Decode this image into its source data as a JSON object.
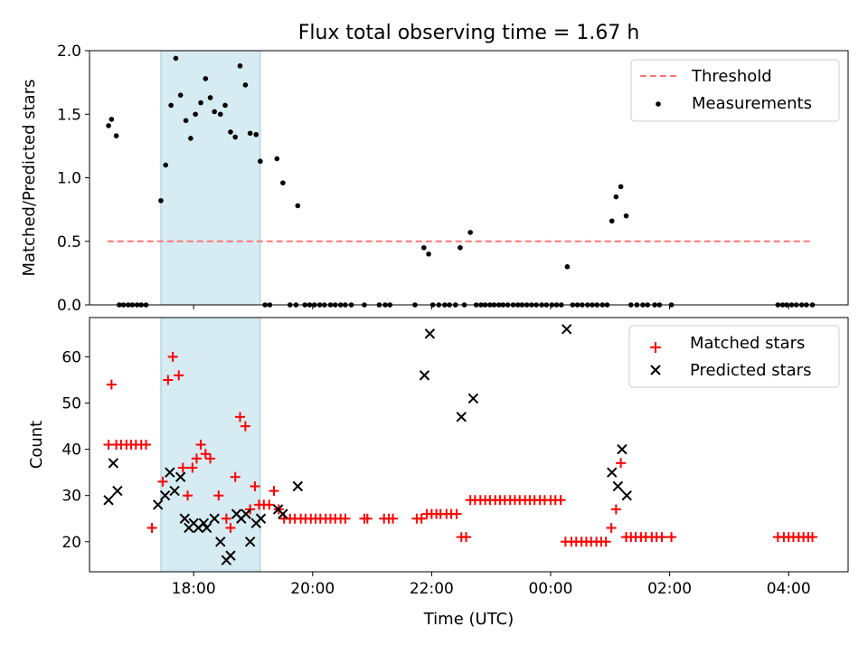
{
  "chart_data": [
    {
      "type": "scatter",
      "title": "Flux total observing time = 1.67 h",
      "xlabel": "",
      "ylabel": "Matched/Predicted stars",
      "ylim": [
        0,
        2.0
      ],
      "yticks": [
        "0.0",
        "0.5",
        "1.0",
        "1.5",
        "2.0"
      ],
      "ytick_values": [
        0,
        0.5,
        1.0,
        1.5,
        2.0
      ],
      "xlim_hours": [
        16.25,
        29.0
      ],
      "xtick_hours": [
        18,
        20,
        22,
        24,
        26,
        28
      ],
      "xtick_labels": [
        "18:00",
        "20:00",
        "22:00",
        "00:00",
        "02:00",
        "04:00"
      ],
      "show_xtick_labels": false,
      "highlight_span_hours": [
        17.45,
        19.12
      ],
      "highlight_color": "#add8e6",
      "threshold": {
        "name": "Threshold",
        "value": 0.5,
        "x_range_hours": [
          16.55,
          28.4
        ],
        "color": "#ff7777"
      },
      "legend": {
        "position": "upper right",
        "entries": [
          "Threshold",
          "Measurements"
        ]
      },
      "series": [
        {
          "name": "Measurements",
          "marker": "dot",
          "color": "#000000",
          "points": [
            [
              16.57,
              1.41
            ],
            [
              16.62,
              1.46
            ],
            [
              16.7,
              1.33
            ],
            [
              16.75,
              0
            ],
            [
              16.82,
              0
            ],
            [
              16.9,
              0
            ],
            [
              16.97,
              0
            ],
            [
              17.05,
              0
            ],
            [
              17.12,
              0
            ],
            [
              17.2,
              0
            ],
            [
              17.45,
              0.82
            ],
            [
              17.53,
              1.1
            ],
            [
              17.62,
              1.57
            ],
            [
              17.7,
              1.94
            ],
            [
              17.78,
              1.65
            ],
            [
              17.87,
              1.45
            ],
            [
              17.95,
              1.31
            ],
            [
              18.03,
              1.5
            ],
            [
              18.12,
              1.59
            ],
            [
              18.2,
              1.78
            ],
            [
              18.28,
              1.63
            ],
            [
              18.35,
              1.52
            ],
            [
              18.45,
              1.5
            ],
            [
              18.53,
              1.57
            ],
            [
              18.62,
              1.36
            ],
            [
              18.7,
              1.32
            ],
            [
              18.78,
              1.88
            ],
            [
              18.87,
              1.73
            ],
            [
              18.95,
              1.35
            ],
            [
              19.05,
              1.34
            ],
            [
              19.12,
              1.13
            ],
            [
              19.2,
              0
            ],
            [
              19.28,
              0
            ],
            [
              19.4,
              1.15
            ],
            [
              19.5,
              0.96
            ],
            [
              19.62,
              0
            ],
            [
              19.72,
              0
            ],
            [
              19.75,
              0.78
            ],
            [
              19.87,
              0
            ],
            [
              19.95,
              0
            ],
            [
              20.03,
              0
            ],
            [
              20.12,
              0
            ],
            [
              20.2,
              0
            ],
            [
              20.3,
              0
            ],
            [
              20.38,
              0
            ],
            [
              20.47,
              0
            ],
            [
              20.55,
              0
            ],
            [
              20.65,
              0
            ],
            [
              20.87,
              0
            ],
            [
              21.12,
              0
            ],
            [
              21.22,
              0
            ],
            [
              21.3,
              0
            ],
            [
              21.72,
              0
            ],
            [
              21.87,
              0.45
            ],
            [
              21.95,
              0.4
            ],
            [
              22.02,
              0
            ],
            [
              22.12,
              0
            ],
            [
              22.22,
              0
            ],
            [
              22.3,
              0
            ],
            [
              22.4,
              0
            ],
            [
              22.48,
              0.45
            ],
            [
              22.55,
              0
            ],
            [
              22.65,
              0.57
            ],
            [
              22.75,
              0
            ],
            [
              22.83,
              0
            ],
            [
              22.9,
              0
            ],
            [
              22.98,
              0
            ],
            [
              23.05,
              0
            ],
            [
              23.13,
              0
            ],
            [
              23.2,
              0
            ],
            [
              23.28,
              0
            ],
            [
              23.37,
              0
            ],
            [
              23.45,
              0
            ],
            [
              23.52,
              0
            ],
            [
              23.6,
              0
            ],
            [
              23.68,
              0
            ],
            [
              23.76,
              0
            ],
            [
              23.85,
              0
            ],
            [
              23.93,
              0
            ],
            [
              24.02,
              0
            ],
            [
              24.1,
              0
            ],
            [
              24.18,
              0
            ],
            [
              24.28,
              0.3
            ],
            [
              24.37,
              0
            ],
            [
              24.45,
              0
            ],
            [
              24.53,
              0
            ],
            [
              24.62,
              0
            ],
            [
              24.7,
              0
            ],
            [
              24.78,
              0
            ],
            [
              24.87,
              0
            ],
            [
              24.95,
              0
            ],
            [
              25.03,
              0.66
            ],
            [
              25.1,
              0.85
            ],
            [
              25.18,
              0.93
            ],
            [
              25.27,
              0.7
            ],
            [
              25.35,
              0
            ],
            [
              25.45,
              0
            ],
            [
              25.55,
              0
            ],
            [
              25.63,
              0
            ],
            [
              25.75,
              0
            ],
            [
              25.83,
              0
            ],
            [
              26.03,
              0
            ],
            [
              27.82,
              0
            ],
            [
              27.9,
              0
            ],
            [
              27.97,
              0
            ],
            [
              28.05,
              0
            ],
            [
              28.13,
              0
            ],
            [
              28.22,
              0
            ],
            [
              28.3,
              0
            ],
            [
              28.4,
              0
            ]
          ]
        }
      ]
    },
    {
      "type": "scatter",
      "title": "",
      "xlabel": "Time (UTC)",
      "ylabel": "Count",
      "ylim": [
        13.5,
        68.5
      ],
      "yticks": [
        "20",
        "30",
        "40",
        "50",
        "60"
      ],
      "ytick_values": [
        20,
        30,
        40,
        50,
        60
      ],
      "xlim_hours": [
        16.25,
        29.0
      ],
      "xtick_hours": [
        18,
        20,
        22,
        24,
        26,
        28
      ],
      "xtick_labels": [
        "18:00",
        "20:00",
        "22:00",
        "00:00",
        "02:00",
        "04:00"
      ],
      "show_xtick_labels": true,
      "highlight_span_hours": [
        17.45,
        19.12
      ],
      "highlight_color": "#add8e6",
      "legend": {
        "position": "upper right",
        "entries": [
          "Matched stars",
          "Predicted stars"
        ]
      },
      "series": [
        {
          "name": "Matched stars",
          "marker": "plus",
          "color": "#ff0000",
          "points": [
            [
              16.57,
              41
            ],
            [
              16.62,
              54
            ],
            [
              16.7,
              41
            ],
            [
              16.78,
              41
            ],
            [
              16.87,
              41
            ],
            [
              16.95,
              41
            ],
            [
              17.03,
              41
            ],
            [
              17.12,
              41
            ],
            [
              17.2,
              41
            ],
            [
              17.3,
              23
            ],
            [
              17.48,
              33
            ],
            [
              17.57,
              55
            ],
            [
              17.65,
              60
            ],
            [
              17.75,
              56
            ],
            [
              17.82,
              36
            ],
            [
              17.9,
              30
            ],
            [
              17.98,
              36
            ],
            [
              18.05,
              38
            ],
            [
              18.12,
              41
            ],
            [
              18.2,
              39
            ],
            [
              18.28,
              38
            ],
            [
              18.42,
              30
            ],
            [
              18.55,
              25
            ],
            [
              18.62,
              23
            ],
            [
              18.7,
              34
            ],
            [
              18.78,
              47
            ],
            [
              18.87,
              45
            ],
            [
              18.95,
              27
            ],
            [
              19.03,
              32
            ],
            [
              19.1,
              28
            ],
            [
              19.18,
              28
            ],
            [
              19.27,
              28
            ],
            [
              19.35,
              31
            ],
            [
              19.43,
              27
            ],
            [
              19.52,
              25
            ],
            [
              19.62,
              25
            ],
            [
              19.7,
              25
            ],
            [
              19.8,
              25
            ],
            [
              19.88,
              25
            ],
            [
              19.97,
              25
            ],
            [
              20.05,
              25
            ],
            [
              20.13,
              25
            ],
            [
              20.22,
              25
            ],
            [
              20.3,
              25
            ],
            [
              20.38,
              25
            ],
            [
              20.47,
              25
            ],
            [
              20.55,
              25
            ],
            [
              20.87,
              25
            ],
            [
              20.92,
              25
            ],
            [
              21.2,
              25
            ],
            [
              21.28,
              25
            ],
            [
              21.35,
              25
            ],
            [
              21.75,
              25
            ],
            [
              21.83,
              25
            ],
            [
              21.92,
              26
            ],
            [
              22.0,
              26
            ],
            [
              22.08,
              26
            ],
            [
              22.15,
              26
            ],
            [
              22.25,
              26
            ],
            [
              22.33,
              26
            ],
            [
              22.42,
              26
            ],
            [
              22.5,
              21
            ],
            [
              22.58,
              21
            ],
            [
              22.65,
              29
            ],
            [
              22.73,
              29
            ],
            [
              22.82,
              29
            ],
            [
              22.9,
              29
            ],
            [
              22.98,
              29
            ],
            [
              23.07,
              29
            ],
            [
              23.15,
              29
            ],
            [
              23.23,
              29
            ],
            [
              23.32,
              29
            ],
            [
              23.4,
              29
            ],
            [
              23.48,
              29
            ],
            [
              23.57,
              29
            ],
            [
              23.65,
              29
            ],
            [
              23.73,
              29
            ],
            [
              23.82,
              29
            ],
            [
              23.9,
              29
            ],
            [
              24.0,
              29
            ],
            [
              24.08,
              29
            ],
            [
              24.17,
              29
            ],
            [
              24.25,
              20
            ],
            [
              24.35,
              20
            ],
            [
              24.43,
              20
            ],
            [
              24.52,
              20
            ],
            [
              24.6,
              20
            ],
            [
              24.68,
              20
            ],
            [
              24.77,
              20
            ],
            [
              24.85,
              20
            ],
            [
              24.93,
              20
            ],
            [
              25.02,
              23
            ],
            [
              25.1,
              27
            ],
            [
              25.18,
              37
            ],
            [
              25.27,
              21
            ],
            [
              25.35,
              21
            ],
            [
              25.43,
              21
            ],
            [
              25.52,
              21
            ],
            [
              25.6,
              21
            ],
            [
              25.7,
              21
            ],
            [
              25.78,
              21
            ],
            [
              25.87,
              21
            ],
            [
              26.03,
              21
            ],
            [
              27.82,
              21
            ],
            [
              27.92,
              21
            ],
            [
              28.0,
              21
            ],
            [
              28.08,
              21
            ],
            [
              28.17,
              21
            ],
            [
              28.25,
              21
            ],
            [
              28.33,
              21
            ],
            [
              28.4,
              21
            ]
          ]
        },
        {
          "name": "Predicted stars",
          "marker": "x",
          "color": "#000000",
          "points": [
            [
              16.57,
              29
            ],
            [
              16.65,
              37
            ],
            [
              16.72,
              31
            ],
            [
              17.4,
              28
            ],
            [
              17.52,
              30
            ],
            [
              17.6,
              35
            ],
            [
              17.68,
              31
            ],
            [
              17.78,
              34
            ],
            [
              17.85,
              25
            ],
            [
              17.92,
              23
            ],
            [
              18.0,
              24
            ],
            [
              18.08,
              23
            ],
            [
              18.17,
              24
            ],
            [
              18.22,
              23
            ],
            [
              18.35,
              25
            ],
            [
              18.45,
              20
            ],
            [
              18.55,
              16
            ],
            [
              18.62,
              17
            ],
            [
              18.72,
              26
            ],
            [
              18.8,
              25
            ],
            [
              18.88,
              26
            ],
            [
              18.95,
              20
            ],
            [
              19.05,
              24
            ],
            [
              19.13,
              25
            ],
            [
              19.42,
              27
            ],
            [
              19.5,
              26
            ],
            [
              19.75,
              32
            ],
            [
              21.88,
              56
            ],
            [
              21.97,
              65
            ],
            [
              22.5,
              47
            ],
            [
              22.7,
              51
            ],
            [
              24.27,
              66
            ],
            [
              25.03,
              35
            ],
            [
              25.13,
              32
            ],
            [
              25.2,
              40
            ],
            [
              25.28,
              30
            ]
          ]
        }
      ]
    }
  ]
}
